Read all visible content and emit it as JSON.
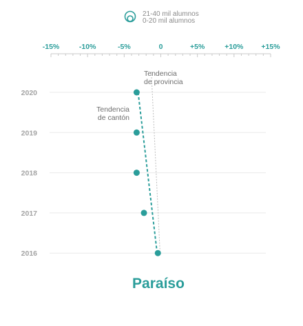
{
  "legend": {
    "items": [
      {
        "label": "21-40 mil alumnos"
      },
      {
        "label": "0-20 mil alumnos"
      }
    ],
    "icon": "nested-circles-icon"
  },
  "colors": {
    "accent": "#2a9d9a",
    "grid": "#e9e9e9",
    "axis": "#c8c8c8",
    "muted_text": "#a3a3a3",
    "province_line": "#bdbdbd"
  },
  "chart_data": {
    "type": "scatter",
    "title": "Paraíso",
    "x_axis": {
      "range": [
        -15,
        15
      ],
      "ticks": [
        -15,
        -10,
        -5,
        0,
        5,
        10,
        15
      ],
      "tick_labels": [
        "-15%",
        "-10%",
        "-5%",
        "0",
        "+5%",
        "+10%",
        "+15%"
      ],
      "minor_step": 1
    },
    "y_axis": {
      "categories": [
        "2020",
        "2019",
        "2018",
        "2017",
        "2016"
      ]
    },
    "series": [
      {
        "points": [
          {
            "year": "2016",
            "x": -0.4
          },
          {
            "year": "2017",
            "x": -2.3
          },
          {
            "year": "2018",
            "x": -3.3
          },
          {
            "year": "2019",
            "x": -3.3
          },
          {
            "year": "2020",
            "x": -3.3
          }
        ]
      }
    ],
    "trend_lines": [
      {
        "label_lines": [
          "Tendencia",
          "de cantón"
        ],
        "from": {
          "year": "2020",
          "x": -3.1
        },
        "to": {
          "year": "2016",
          "x": -0.5
        },
        "style": "dashed"
      },
      {
        "label_lines": [
          "Tendencia",
          "de provincia"
        ],
        "from": {
          "year": "2020",
          "x": -1.3
        },
        "to": {
          "year": "2016",
          "x": -0.1
        },
        "style": "dotted"
      }
    ],
    "grid": true,
    "legend_placement": "top-center"
  }
}
